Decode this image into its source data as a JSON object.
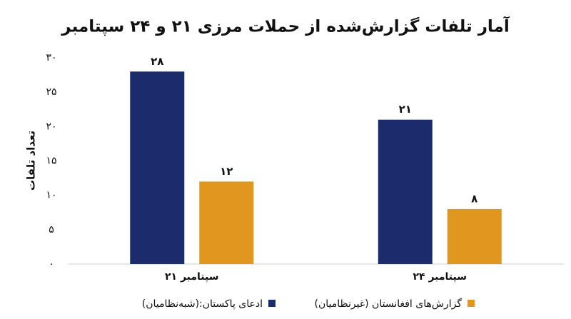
{
  "chart_data": {
    "type": "bar",
    "title": "آمار تلفات گزارش‌شده از حملات مرزی ۲۱ و ۲۴ سپتامبر",
    "y_label": "تعداد تلفات",
    "categories": [
      "۲۱ سپتامبر",
      "۲۴ سپتامبر"
    ],
    "series": [
      {
        "name": "ادعای پاکستان:(شبه‌نظامیان)",
        "color": "#1b2b6b",
        "values": [
          28,
          21
        ],
        "value_labels": [
          "۲۸",
          "۲۱"
        ]
      },
      {
        "name": "گزارش‌های افغانستان (غیرنظامیان)",
        "color": "#e0961f",
        "values": [
          12,
          8
        ],
        "value_labels": [
          "۱۲",
          "۸"
        ]
      }
    ],
    "ylim": [
      0,
      30
    ],
    "yticks": [
      {
        "value": 0,
        "label": "۰"
      },
      {
        "value": 5,
        "label": "۵"
      },
      {
        "value": 10,
        "label": "۱۰"
      },
      {
        "value": 15,
        "label": "۱۵"
      },
      {
        "value": 20,
        "label": "۲۰"
      },
      {
        "value": 25,
        "label": "۲۵"
      },
      {
        "value": 30,
        "label": "۳۰"
      }
    ],
    "grid": false
  }
}
